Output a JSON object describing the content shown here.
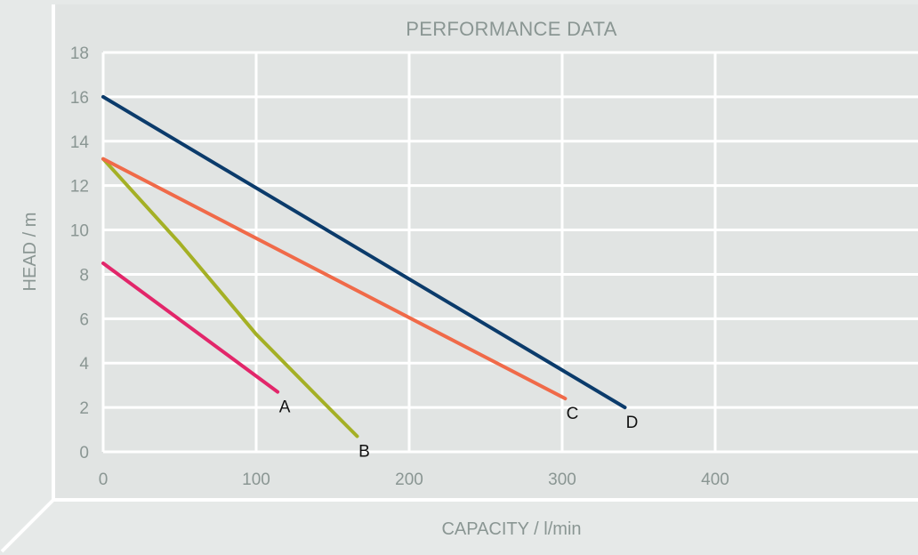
{
  "chart_data": {
    "type": "line",
    "title": "PERFORMANCE DATA",
    "xlabel": "CAPACITY / l/min",
    "ylabel": "HEAD / m",
    "xlim": [
      0,
      530
    ],
    "ylim": [
      0,
      18
    ],
    "x_ticks": [
      0,
      100,
      200,
      300,
      400
    ],
    "y_ticks": [
      0,
      2,
      4,
      6,
      8,
      10,
      12,
      14,
      16,
      18
    ],
    "grid": true,
    "series": [
      {
        "name": "A",
        "color": "#e2266a",
        "points": [
          [
            0,
            8.5
          ],
          [
            114,
            2.7
          ]
        ]
      },
      {
        "name": "B",
        "color": "#a4b025",
        "points": [
          [
            0,
            13.2
          ],
          [
            50,
            9.4
          ],
          [
            100,
            5.3
          ],
          [
            140,
            2.5
          ],
          [
            166,
            0.7
          ]
        ]
      },
      {
        "name": "C",
        "color": "#f06a49",
        "points": [
          [
            0,
            13.2
          ],
          [
            302,
            2.4
          ]
        ]
      },
      {
        "name": "D",
        "color": "#0b3b6b",
        "points": [
          [
            0,
            16.0
          ],
          [
            341,
            2.0
          ]
        ]
      }
    ]
  }
}
